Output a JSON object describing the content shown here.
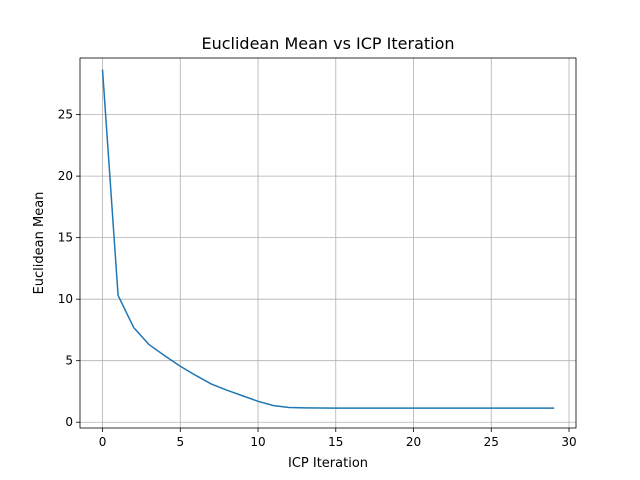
{
  "chart_data": {
    "type": "line",
    "title": "Euclidean Mean vs ICP Iteration",
    "xlabel": "ICP Iteration",
    "ylabel": "Euclidean Mean",
    "xlim": [
      -1.45,
      30.45
    ],
    "ylim": [
      -0.47,
      29.6
    ],
    "xticks": [
      0,
      5,
      10,
      15,
      20,
      25,
      30
    ],
    "yticks": [
      0,
      5,
      10,
      15,
      20,
      25
    ],
    "grid": true,
    "line_color": "#1f77b4",
    "series": [
      {
        "x": [
          0,
          1,
          2,
          3,
          4,
          5,
          6,
          7,
          8,
          9,
          10,
          11,
          12,
          13,
          14,
          15,
          16,
          17,
          18,
          19,
          20,
          21,
          22,
          23,
          24,
          25,
          26,
          27,
          28,
          29
        ],
        "values": [
          28.6,
          10.3,
          7.7,
          6.3,
          5.4,
          4.55,
          3.8,
          3.1,
          2.6,
          2.15,
          1.7,
          1.35,
          1.2,
          1.17,
          1.16,
          1.15,
          1.15,
          1.15,
          1.15,
          1.15,
          1.15,
          1.15,
          1.15,
          1.15,
          1.15,
          1.15,
          1.15,
          1.15,
          1.15,
          1.15
        ]
      }
    ]
  }
}
